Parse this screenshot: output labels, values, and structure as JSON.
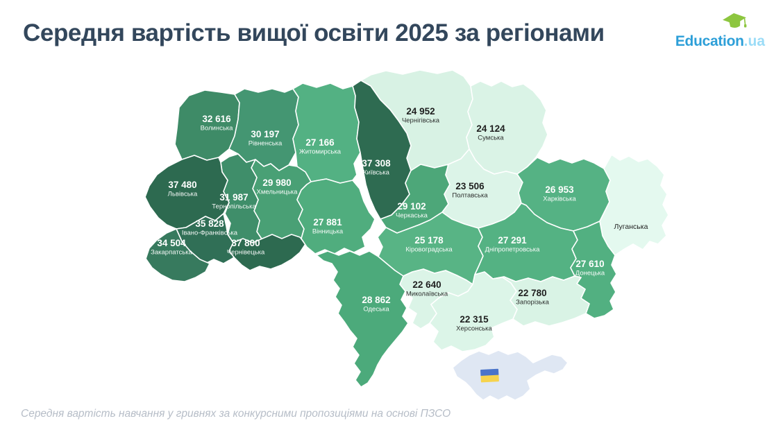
{
  "header": {
    "title": "Середня вартість вищої освіти 2025 за регіонами"
  },
  "logo": {
    "text": "Education",
    "suffix": ".ua",
    "brand_blue": "#2d9fd8",
    "suffix_blue": "#9bdcf7",
    "cap_green": "#8dc63f"
  },
  "footer": {
    "caption": "Середня вартість навчання у гривнях за конкурсними пропозиціями на основі ПЗСО"
  },
  "chart_data": {
    "type": "choropleth_map",
    "area": "Ukraine oblasts",
    "unit": "UAH (гривні)",
    "color_scale": {
      "low": "#e4f9ef",
      "high": "#2d6a50"
    },
    "regions": [
      {
        "id": "volynska",
        "name": "Волинська",
        "value": 32616,
        "value_display": "32 616",
        "fill": "#3e8b67",
        "label_color": "#ffffff"
      },
      {
        "id": "rivnenska",
        "name": "Рівненська",
        "value": 30197,
        "value_display": "30 197",
        "fill": "#449672",
        "label_color": "#ffffff"
      },
      {
        "id": "zhytomyrska",
        "name": "Житомирська",
        "value": 27166,
        "value_display": "27 166",
        "fill": "#53b183",
        "label_color": "#ffffff"
      },
      {
        "id": "chernihivska",
        "name": "Чернігівська",
        "value": 24952,
        "value_display": "24 952",
        "fill": "#d8f2e4",
        "label_color": "#1f1f1f"
      },
      {
        "id": "sumska",
        "name": "Сумська",
        "value": 24124,
        "value_display": "24 124",
        "fill": "#daf3e6",
        "label_color": "#1f1f1f"
      },
      {
        "id": "kyivska",
        "name": "Київська",
        "value": 37308,
        "value_display": "37 308",
        "fill": "#2e6b51",
        "label_color": "#ffffff"
      },
      {
        "id": "khmelnytska",
        "name": "Хмельницька",
        "value": 29980,
        "value_display": "29 980",
        "fill": "#49a075",
        "label_color": "#ffffff"
      },
      {
        "id": "ternopilska",
        "name": "Тернопільська",
        "value": 31987,
        "value_display": "31 987",
        "fill": "#3f8e6a",
        "label_color": "#ffffff"
      },
      {
        "id": "lvivska",
        "name": "Львівська",
        "value": 37480,
        "value_display": "37 480",
        "fill": "#2d6a50",
        "label_color": "#ffffff"
      },
      {
        "id": "ivano_frankivska",
        "name": "Івано-Франківська",
        "value": 35828,
        "value_display": "35 828",
        "fill": "#306f56",
        "label_color": "#ffffff"
      },
      {
        "id": "zakarpatska",
        "name": "Закарпатська",
        "value": 34504,
        "value_display": "34 504",
        "fill": "#377a5e",
        "label_color": "#ffffff"
      },
      {
        "id": "chernivetska",
        "name": "Чернівецька",
        "value": 37800,
        "value_display": "37 800",
        "fill": "#2d6a50",
        "label_color": "#ffffff"
      },
      {
        "id": "vinnytska",
        "name": "Вінницька",
        "value": 27881,
        "value_display": "27 881",
        "fill": "#50ad7e",
        "label_color": "#ffffff"
      },
      {
        "id": "cherkaska",
        "name": "Черкаська",
        "value": 29102,
        "value_display": "29 102",
        "fill": "#4da779",
        "label_color": "#ffffff"
      },
      {
        "id": "poltavska",
        "name": "Полтавська",
        "value": 23506,
        "value_display": "23 506",
        "fill": "#dcf4e8",
        "label_color": "#1f1f1f"
      },
      {
        "id": "kharkivska",
        "name": "Харківська",
        "value": 26953,
        "value_display": "26 953",
        "fill": "#55b284",
        "label_color": "#ffffff"
      },
      {
        "id": "luhanska",
        "name": "Луганська",
        "value": null,
        "value_display": "",
        "fill": "#e4f9ef",
        "label_color": "#1f1f1f"
      },
      {
        "id": "kirovohradska",
        "name": "Кіровоградська",
        "value": 25178,
        "value_display": "25 178",
        "fill": "#58b485",
        "label_color": "#ffffff"
      },
      {
        "id": "dnipropetrovska",
        "name": "Дніпропетровська",
        "value": 27291,
        "value_display": "27 291",
        "fill": "#54b283",
        "label_color": "#ffffff"
      },
      {
        "id": "donetska",
        "name": "Донецька",
        "value": 27610,
        "value_display": "27 610",
        "fill": "#52b081",
        "label_color": "#ffffff"
      },
      {
        "id": "mykolaivska",
        "name": "Миколаївська",
        "value": 22640,
        "value_display": "22 640",
        "fill": "#dbf4e7",
        "label_color": "#1f1f1f"
      },
      {
        "id": "zaporizka",
        "name": "Запорізька",
        "value": 22780,
        "value_display": "22 780",
        "fill": "#d9f3e5",
        "label_color": "#1f1f1f"
      },
      {
        "id": "khersonska",
        "name": "Херсонська",
        "value": 22315,
        "value_display": "22 315",
        "fill": "#dcf5e8",
        "label_color": "#1f1f1f"
      },
      {
        "id": "odeska",
        "name": "Одеська",
        "value": 28862,
        "value_display": "28 862",
        "fill": "#4caa7b",
        "label_color": "#ffffff"
      }
    ],
    "crimea": {
      "fill": "#dfe7f3",
      "marker": "ukraine-flag",
      "flag_blue": "#4a74c9",
      "flag_yellow": "#f6d34d"
    }
  }
}
